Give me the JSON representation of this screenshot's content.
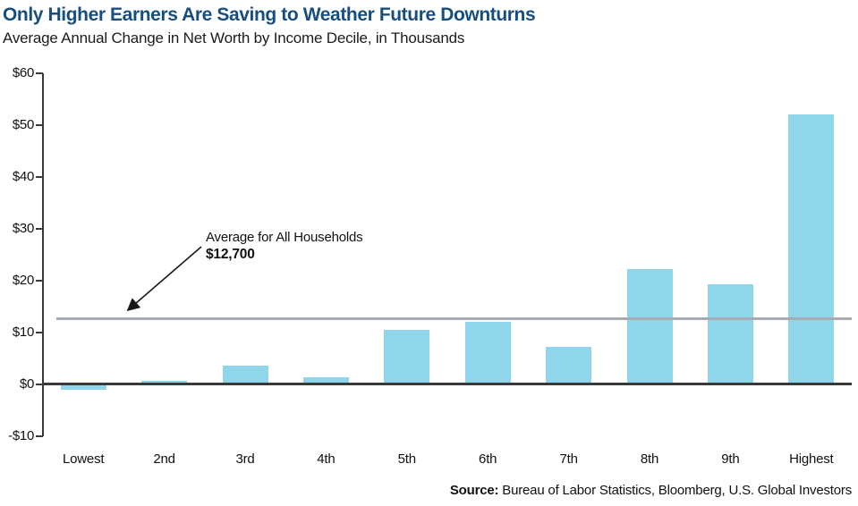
{
  "chart_data": {
    "type": "bar",
    "title": "Only Higher Earners Are Saving to Weather Future Downturns",
    "subtitle": "Average Annual Change in Net Worth by Income Decile, in Thousands",
    "categories": [
      "Lowest",
      "2nd",
      "3rd",
      "4th",
      "5th",
      "6th",
      "7th",
      "8th",
      "9th",
      "Highest"
    ],
    "values": [
      -1.0,
      0.7,
      3.6,
      1.4,
      10.5,
      12.0,
      7.3,
      22.2,
      19.3,
      52.0
    ],
    "xlabel": "",
    "ylabel": "",
    "units": "thousands of dollars",
    "ylim": [
      -10,
      60
    ],
    "ytick_step": 10,
    "ytick_labels": [
      "$60",
      "$50",
      "$40",
      "$30",
      "$20",
      "$10",
      "$0",
      "-$10"
    ],
    "grid": "off",
    "legend": "none",
    "bar_color": "#8fd6ea",
    "axis_color": "#3a3a3a",
    "title_color": "#174e7e",
    "average_line": {
      "label": "Average for All Households",
      "value_text": "$12,700",
      "value": 12.7,
      "color": "#a6acb1"
    }
  },
  "source": {
    "prefix": "Source:",
    "text": " Bureau of Labor Statistics, Bloomberg, U.S. Global Investors"
  }
}
